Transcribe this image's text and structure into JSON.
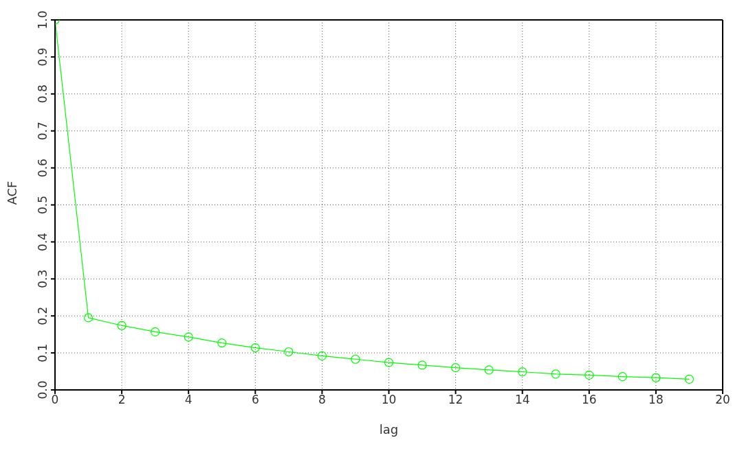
{
  "chart_data": {
    "type": "line",
    "xlabel": "lag",
    "ylabel": "ACF",
    "x": [
      0,
      1,
      2,
      3,
      4,
      5,
      6,
      7,
      8,
      9,
      10,
      11,
      12,
      13,
      14,
      15,
      16,
      17,
      18,
      19
    ],
    "series": [
      {
        "color": "#00ff00",
        "values": [
          1.0,
          0.195,
          0.174,
          0.157,
          0.143,
          0.127,
          0.114,
          0.103,
          0.092,
          0.083,
          0.074,
          0.067,
          0.06,
          0.054,
          0.049,
          0.043,
          0.04,
          0.036,
          0.033,
          0.029
        ]
      }
    ],
    "xlim": [
      0,
      20
    ],
    "xticks": [
      0,
      2,
      4,
      6,
      8,
      10,
      12,
      14,
      16,
      18,
      20
    ],
    "ylim": [
      0,
      1
    ],
    "yticks": [
      {
        "value": 0,
        "label": "0.0"
      },
      0.1,
      0.2,
      0.3,
      0.4,
      0.5,
      0.6,
      0.7,
      0.8,
      0.9,
      {
        "value": 1,
        "label": "1.0"
      }
    ],
    "grid": true,
    "marker": "circle",
    "line_style": "solid",
    "legend": false
  }
}
